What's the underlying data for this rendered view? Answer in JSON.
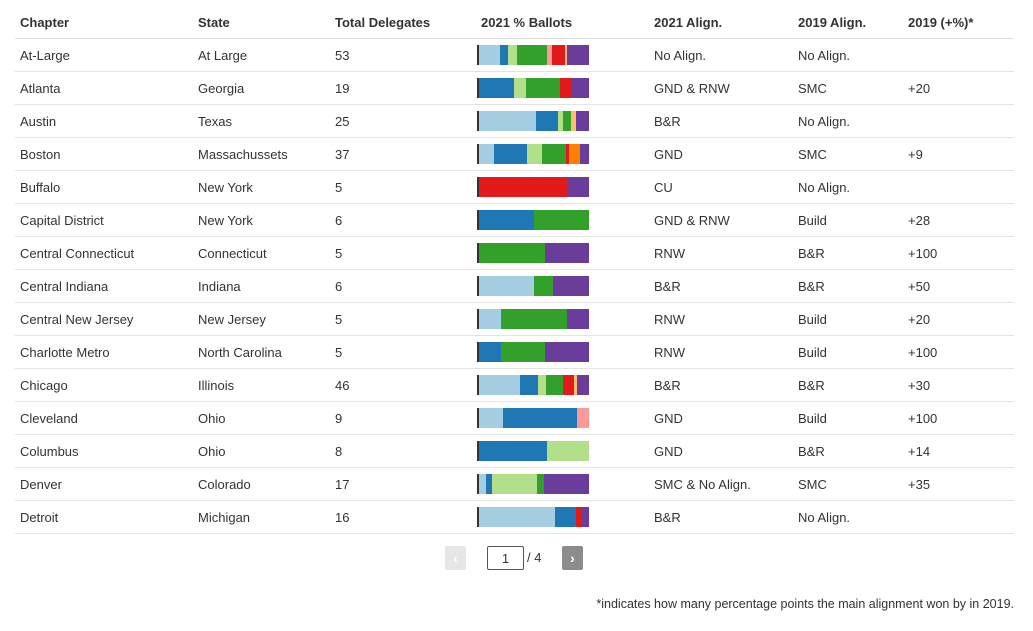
{
  "columns": [
    "Chapter",
    "State",
    "Total Delegates",
    "2021 % Ballots",
    "2021 Align.",
    "2019 Align.",
    "2019 (+%)*"
  ],
  "colors": {
    "light_blue": "#a6cee3",
    "blue": "#1f78b4",
    "light_green": "#b2df8a",
    "green": "#33a02c",
    "pink": "#fb9a99",
    "red": "#e31a1c",
    "light_orange": "#fdbf6f",
    "orange": "#ff7f00",
    "purple": "#6a3d9a"
  },
  "rows": [
    {
      "chapter": "At-Large",
      "state": "At Large",
      "delegates": "53",
      "align2021": "No Align.",
      "align2019": "No Align.",
      "plus2019": "",
      "ballots": [
        [
          "light_blue",
          19
        ],
        [
          "blue",
          7
        ],
        [
          "light_green",
          9
        ],
        [
          "green",
          27
        ],
        [
          "pink",
          4
        ],
        [
          "red",
          12
        ],
        [
          "light_orange",
          2
        ],
        [
          "purple",
          20
        ]
      ]
    },
    {
      "chapter": "Atlanta",
      "state": "Georgia",
      "delegates": "19",
      "align2021": "GND & RNW",
      "align2019": "SMC",
      "plus2019": "+20",
      "ballots": [
        [
          "blue",
          32
        ],
        [
          "light_green",
          11
        ],
        [
          "green",
          31
        ],
        [
          "red",
          10
        ],
        [
          "purple",
          16
        ]
      ]
    },
    {
      "chapter": "Austin",
      "state": "Texas",
      "delegates": "25",
      "align2021": "B&R",
      "align2019": "No Align.",
      "plus2019": "",
      "ballots": [
        [
          "light_blue",
          52
        ],
        [
          "blue",
          20
        ],
        [
          "light_green",
          4
        ],
        [
          "green",
          8
        ],
        [
          "light_orange",
          4
        ],
        [
          "purple",
          12
        ]
      ]
    },
    {
      "chapter": "Boston",
      "state": "Massachussets",
      "delegates": "37",
      "align2021": "GND",
      "align2019": "SMC",
      "plus2019": "+9",
      "ballots": [
        [
          "light_blue",
          14
        ],
        [
          "blue",
          30
        ],
        [
          "light_green",
          13
        ],
        [
          "green",
          22
        ],
        [
          "red",
          3
        ],
        [
          "orange",
          10
        ],
        [
          "purple",
          8
        ]
      ]
    },
    {
      "chapter": "Buffalo",
      "state": "New York",
      "delegates": "5",
      "align2021": "CU",
      "align2019": "No Align.",
      "plus2019": "",
      "ballots": [
        [
          "red",
          80
        ],
        [
          "purple",
          20
        ]
      ]
    },
    {
      "chapter": "Capital District",
      "state": "New York",
      "delegates": "6",
      "align2021": "GND & RNW",
      "align2019": "Build",
      "plus2019": "+28",
      "ballots": [
        [
          "blue",
          50
        ],
        [
          "green",
          50
        ]
      ]
    },
    {
      "chapter": "Central Connecticut",
      "state": "Connecticut",
      "delegates": "5",
      "align2021": "RNW",
      "align2019": "B&R",
      "plus2019": "+100",
      "ballots": [
        [
          "green",
          60
        ],
        [
          "purple",
          40
        ]
      ]
    },
    {
      "chapter": "Central Indiana",
      "state": "Indiana",
      "delegates": "6",
      "align2021": "B&R",
      "align2019": "B&R",
      "plus2019": "+50",
      "ballots": [
        [
          "light_blue",
          50
        ],
        [
          "green",
          17
        ],
        [
          "purple",
          33
        ]
      ]
    },
    {
      "chapter": "Central New Jersey",
      "state": "New Jersey",
      "delegates": "5",
      "align2021": "RNW",
      "align2019": "Build",
      "plus2019": "+20",
      "ballots": [
        [
          "light_blue",
          20
        ],
        [
          "green",
          60
        ],
        [
          "purple",
          20
        ]
      ]
    },
    {
      "chapter": "Charlotte Metro",
      "state": "North Carolina",
      "delegates": "5",
      "align2021": "RNW",
      "align2019": "Build",
      "plus2019": "+100",
      "ballots": [
        [
          "blue",
          20
        ],
        [
          "green",
          40
        ],
        [
          "purple",
          40
        ]
      ]
    },
    {
      "chapter": "Chicago",
      "state": "Illinois",
      "delegates": "46",
      "align2021": "B&R",
      "align2019": "B&R",
      "plus2019": "+30",
      "ballots": [
        [
          "light_blue",
          37
        ],
        [
          "blue",
          17
        ],
        [
          "light_green",
          7
        ],
        [
          "green",
          15
        ],
        [
          "red",
          10
        ],
        [
          "light_orange",
          3
        ],
        [
          "purple",
          11
        ]
      ]
    },
    {
      "chapter": "Cleveland",
      "state": "Ohio",
      "delegates": "9",
      "align2021": "GND",
      "align2019": "Build",
      "plus2019": "+100",
      "ballots": [
        [
          "light_blue",
          22
        ],
        [
          "blue",
          67
        ],
        [
          "pink",
          11
        ]
      ]
    },
    {
      "chapter": "Columbus",
      "state": "Ohio",
      "delegates": "8",
      "align2021": "GND",
      "align2019": "B&R",
      "plus2019": "+14",
      "ballots": [
        [
          "blue",
          62
        ],
        [
          "light_green",
          38
        ]
      ]
    },
    {
      "chapter": "Denver",
      "state": "Colorado",
      "delegates": "17",
      "align2021": "SMC & No Align.",
      "align2019": "SMC",
      "plus2019": "+35",
      "ballots": [
        [
          "light_blue",
          6
        ],
        [
          "blue",
          6
        ],
        [
          "light_green",
          41
        ],
        [
          "green",
          6
        ],
        [
          "purple",
          41
        ]
      ]
    },
    {
      "chapter": "Detroit",
      "state": "Michigan",
      "delegates": "16",
      "align2021": "B&R",
      "align2019": "No Align.",
      "plus2019": "",
      "ballots": [
        [
          "light_blue",
          69
        ],
        [
          "blue",
          19
        ],
        [
          "red",
          6
        ],
        [
          "purple",
          6
        ]
      ]
    }
  ],
  "pager": {
    "prev_label": "‹",
    "next_label": "›",
    "page_value": "1",
    "total_label": "/ 4"
  },
  "footnote": "*indicates how many percentage points the main alignment won by in 2019."
}
